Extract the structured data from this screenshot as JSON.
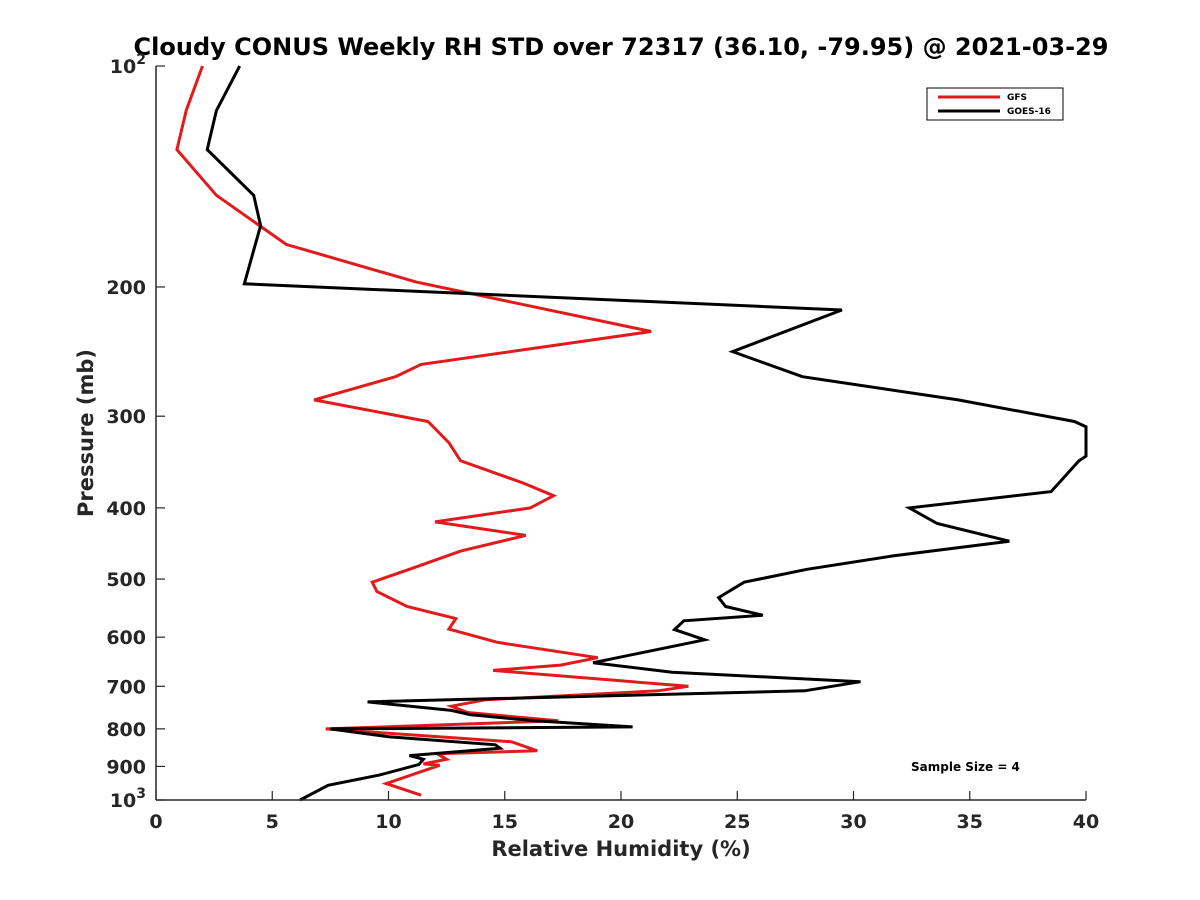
{
  "chart_data": {
    "type": "line",
    "title": "Cloudy CONUS Weekly RH STD over 72317 (36.10, -79.95) @ 2021-03-29",
    "xlabel": "Relative Humidity (%)",
    "ylabel": "Pressure (mb)",
    "xlim": [
      0,
      40
    ],
    "ylim": [
      100,
      1000
    ],
    "y_scale": "log",
    "y_reversed": true,
    "grid": false,
    "legend_position": "top-right",
    "annotation": "Sample Size = 4",
    "x_ticks": [
      {
        "value": 0,
        "label": "0"
      },
      {
        "value": 5,
        "label": "5"
      },
      {
        "value": 10,
        "label": "10"
      },
      {
        "value": 15,
        "label": "15"
      },
      {
        "value": 20,
        "label": "20"
      },
      {
        "value": 25,
        "label": "25"
      },
      {
        "value": 30,
        "label": "30"
      },
      {
        "value": 35,
        "label": "35"
      },
      {
        "value": 40,
        "label": "40"
      }
    ],
    "y_ticks": [
      {
        "value": 100,
        "base": "10",
        "exp": "2"
      },
      {
        "value": 200,
        "base": "200",
        "exp": ""
      },
      {
        "value": 300,
        "base": "300",
        "exp": ""
      },
      {
        "value": 400,
        "base": "400",
        "exp": ""
      },
      {
        "value": 500,
        "base": "500",
        "exp": ""
      },
      {
        "value": 600,
        "base": "600",
        "exp": ""
      },
      {
        "value": 700,
        "base": "700",
        "exp": ""
      },
      {
        "value": 800,
        "base": "800",
        "exp": ""
      },
      {
        "value": 900,
        "base": "900",
        "exp": ""
      },
      {
        "value": 1000,
        "base": "10",
        "exp": "3"
      }
    ],
    "series": [
      {
        "name": "GFS",
        "color": "#e31a1c",
        "x": [
          2.0,
          1.3,
          0.9,
          2.6,
          5.6,
          11.2,
          21.3,
          11.4,
          10.3,
          6.8,
          11.7,
          12.6,
          13.1,
          15.8,
          17.1,
          16.1,
          12.0,
          15.9,
          13.1,
          10.9,
          9.3,
          9.5,
          10.8,
          12.9,
          12.6,
          14.7,
          19.0,
          17.4,
          14.5,
          22.9,
          21.6,
          14.2,
          12.7,
          13.4,
          17.3,
          7.3,
          15.3,
          16.4,
          12.1,
          12.5,
          11.5,
          12.2,
          9.9,
          11.4
        ],
        "y": [
          100,
          115,
          130,
          150,
          175,
          197,
          230,
          255,
          265,
          285,
          305,
          326,
          345,
          370,
          385,
          400,
          418,
          436,
          458,
          485,
          505,
          520,
          545,
          566,
          585,
          610,
          640,
          655,
          666,
          700,
          710,
          730,
          745,
          760,
          780,
          800,
          833,
          857,
          865,
          880,
          893,
          897,
          950,
          985
        ]
      },
      {
        "name": "GOES-16",
        "color": "#000000",
        "x": [
          3.6,
          2.6,
          2.2,
          4.2,
          4.5,
          3.8,
          29.5,
          24.8,
          27.8,
          34.5,
          39.5,
          40.0,
          40.0,
          39.7,
          38.5,
          32.4,
          33.6,
          36.7,
          31.7,
          28.0,
          25.3,
          24.2,
          24.5,
          26.1,
          22.7,
          22.3,
          23.6,
          18.8,
          22.2,
          30.3,
          27.9,
          9.1,
          12.7,
          13.5,
          16.3,
          20.5,
          7.5,
          10.0,
          14.6,
          14.8,
          10.9,
          11.5,
          11.3,
          9.6,
          7.4,
          6.2
        ],
        "y": [
          100,
          115,
          130,
          150,
          165,
          198,
          215,
          245,
          265,
          285,
          305,
          310,
          340,
          345,
          380,
          400,
          420,
          444,
          465,
          485,
          505,
          530,
          545,
          560,
          570,
          586,
          605,
          650,
          670,
          690,
          710,
          735,
          755,
          765,
          780,
          795,
          800,
          820,
          841,
          850,
          870,
          880,
          895,
          925,
          955,
          1000
        ]
      }
    ]
  }
}
